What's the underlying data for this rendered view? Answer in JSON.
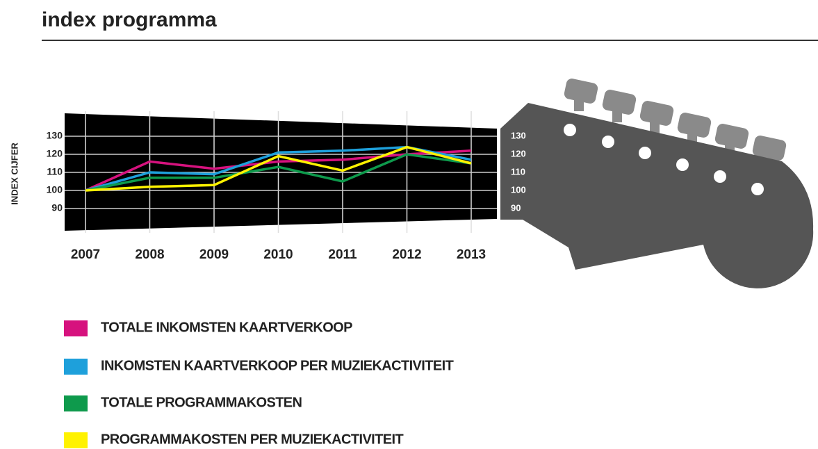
{
  "chart_data": {
    "type": "line",
    "title": "index programma",
    "y_label": "INDEX CIJFER",
    "categories": [
      "2007",
      "2008",
      "2009",
      "2010",
      "2011",
      "2012",
      "2013"
    ],
    "series": [
      {
        "name": "TOTALE INKOMSTEN KAARTVERKOOP",
        "color": "#d6127e",
        "values": [
          100,
          116,
          112,
          116,
          117,
          120,
          122
        ]
      },
      {
        "name": "INKOMSTEN KAARTVERKOOP PER MUZIEKACTIVITEIT",
        "color": "#1ea0db",
        "values": [
          100,
          110,
          109,
          121,
          122,
          124,
          117
        ]
      },
      {
        "name": "TOTALE PROGRAMMAKOSTEN",
        "color": "#0e9a4c",
        "values": [
          100,
          107,
          107,
          113,
          105,
          120,
          115
        ]
      },
      {
        "name": "PROGRAMMAKOSTEN PER MUZIEKACTIVITEIT",
        "color": "#fff200",
        "values": [
          100,
          102,
          103,
          119,
          111,
          124,
          115
        ]
      }
    ],
    "ylim": [
      80,
      140
    ],
    "yticks": [
      90,
      100,
      110,
      120,
      130
    ],
    "grid": true
  }
}
